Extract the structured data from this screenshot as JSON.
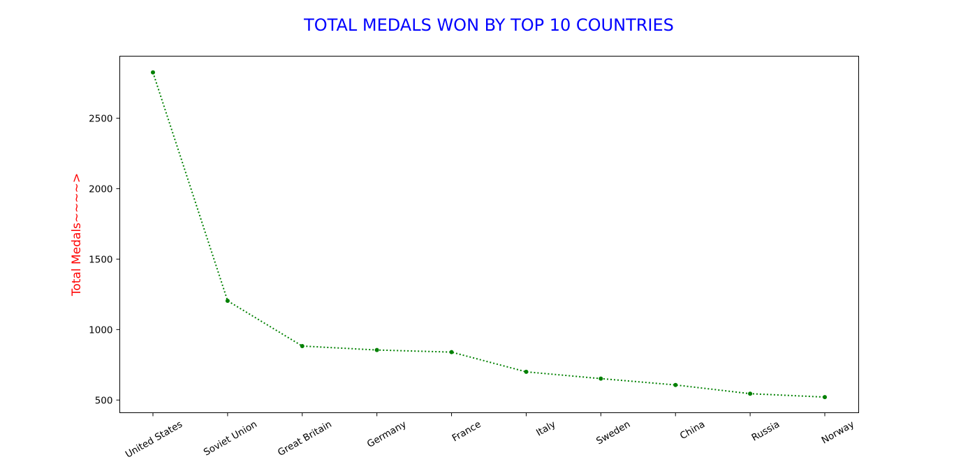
{
  "chart_data": {
    "type": "line",
    "title": "TOTAL MEDALS WON BY TOP 10 COUNTRIES",
    "xlabel": "",
    "ylabel": "Total Medals~~~~>",
    "categories": [
      "United States",
      "Soviet Union",
      "Great Britain",
      "Germany",
      "France",
      "Italy",
      "Sweden",
      "China",
      "Russia",
      "Norway"
    ],
    "values": [
      2825,
      1204,
      883,
      855,
      840,
      700,
      652,
      607,
      545,
      521
    ],
    "yticks": [
      500,
      1000,
      1500,
      2000,
      2500
    ],
    "ylim": [
      410,
      2940
    ],
    "grid": false,
    "line_style": "dotted",
    "marker": "circle",
    "colors": {
      "title": "#0000ff",
      "ylabel": "#ff0000",
      "line": "#008000",
      "marker": "#008000",
      "axis": "#000000"
    }
  }
}
